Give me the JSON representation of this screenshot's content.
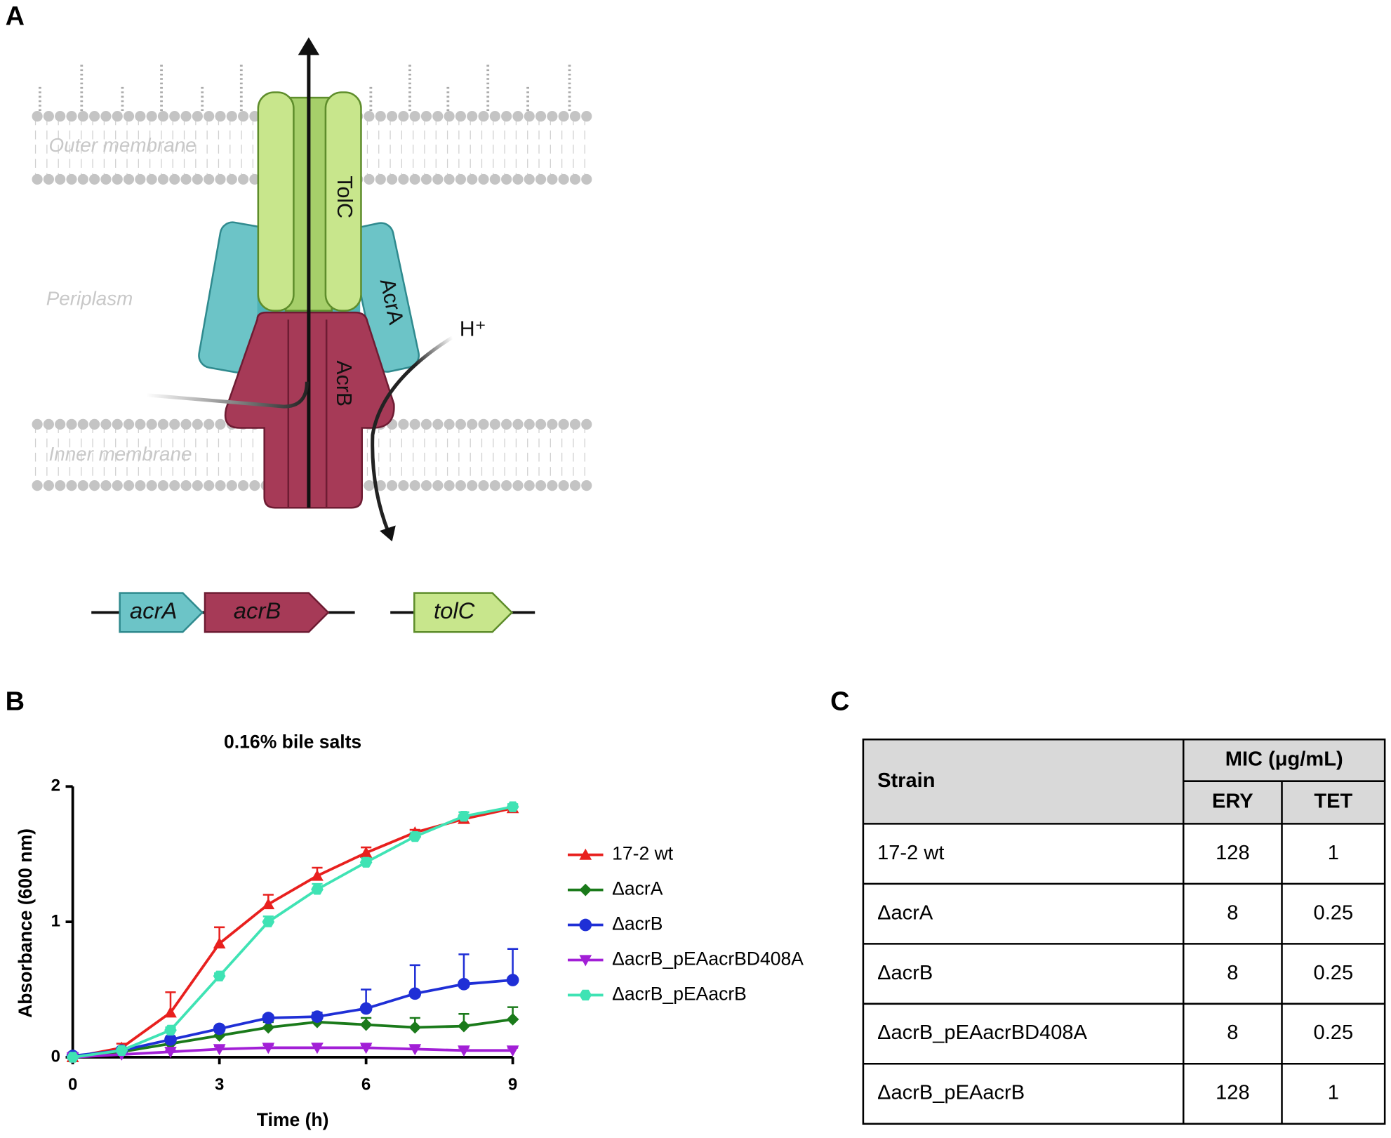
{
  "panel_labels": [
    "A",
    "B",
    "C"
  ],
  "diagram": {
    "outer_membrane": "Outer membrane",
    "periplasm": "Periplasm",
    "inner_membrane": "Inner membrane",
    "tolc": "TolC",
    "acra": "AcrA",
    "acrb": "AcrB",
    "proton": "H⁺",
    "genes": [
      "acrA",
      "acrB",
      "tolC"
    ]
  },
  "chart_data": {
    "type": "line",
    "title": "0.16% bile salts",
    "x_label": "Time (h)",
    "y_label": "Absorbance (600 nm)",
    "x": [
      0,
      1,
      2,
      3,
      4,
      5,
      6,
      7,
      8,
      9
    ],
    "xlim": [
      0,
      9
    ],
    "xticks": [
      0,
      3,
      6,
      9
    ],
    "ylim": [
      0,
      2
    ],
    "yticks": [
      0,
      1,
      2
    ],
    "series": [
      {
        "name": "17-2 wt",
        "color": "#e8201e",
        "marker": "triangle",
        "values": [
          0,
          0.07,
          0.33,
          0.84,
          1.13,
          1.34,
          1.51,
          1.66,
          1.76,
          1.84
        ],
        "errors": [
          0.01,
          0.03,
          0.15,
          0.12,
          0.07,
          0.06,
          0.04,
          0.02,
          0.03,
          0.02
        ]
      },
      {
        "name": "ΔacrA",
        "color": "#1a7a1a",
        "marker": "diamond",
        "values": [
          0,
          0.04,
          0.1,
          0.16,
          0.22,
          0.26,
          0.24,
          0.22,
          0.23,
          0.28
        ],
        "errors": [
          0.01,
          0.01,
          0.02,
          0.03,
          0.04,
          0.04,
          0.05,
          0.07,
          0.09,
          0.09
        ]
      },
      {
        "name": "ΔacrB",
        "color": "#1f2fd6",
        "marker": "circle",
        "values": [
          0.01,
          0.05,
          0.13,
          0.21,
          0.29,
          0.3,
          0.36,
          0.47,
          0.54,
          0.57
        ],
        "errors": [
          0.01,
          0.01,
          0.02,
          0.02,
          0.02,
          0.03,
          0.14,
          0.21,
          0.22,
          0.23
        ]
      },
      {
        "name": "ΔacrB_pEAacrBD408A",
        "color": "#a21fd6",
        "marker": "down-triangle",
        "values": [
          0,
          0.02,
          0.04,
          0.06,
          0.07,
          0.07,
          0.07,
          0.06,
          0.05,
          0.05
        ],
        "errors": [
          0.01,
          0.01,
          0.01,
          0.02,
          0.02,
          0.03,
          0.02,
          0.02,
          0.02,
          0.02
        ]
      },
      {
        "name": "ΔacrB_pEAacrB",
        "color": "#3fe3b4",
        "marker": "hexagon",
        "values": [
          0,
          0.05,
          0.2,
          0.6,
          1.0,
          1.24,
          1.44,
          1.63,
          1.78,
          1.85
        ],
        "errors": [
          0.01,
          0.01,
          0.02,
          0.02,
          0.04,
          0.04,
          0.03,
          0.03,
          0.03,
          0.02
        ]
      }
    ]
  },
  "table": {
    "strain_header": "Strain",
    "mic_header": "MIC (μg/mL)",
    "columns": [
      "ERY",
      "TET"
    ],
    "rows": [
      [
        "17-2 wt",
        "128",
        "1"
      ],
      [
        "ΔacrA",
        "8",
        "0.25"
      ],
      [
        "ΔacrB",
        "8",
        "0.25"
      ],
      [
        "ΔacrB_pEAacrBD408A",
        "8",
        "0.25"
      ],
      [
        "ΔacrB_pEAacrB",
        "128",
        "1"
      ]
    ]
  }
}
